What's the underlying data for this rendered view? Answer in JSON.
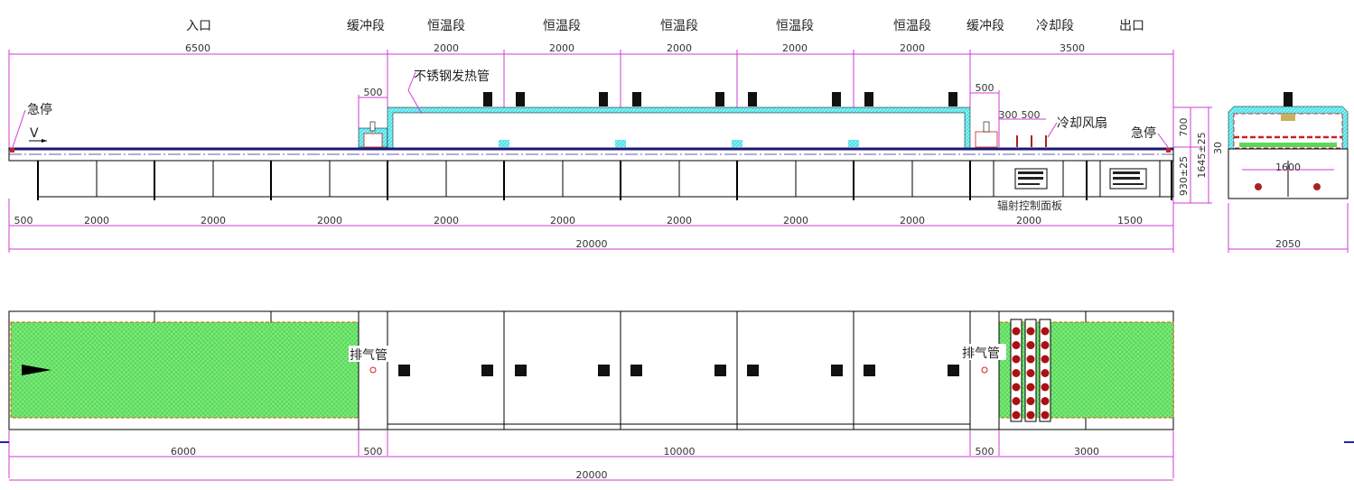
{
  "sections": [
    "入口",
    "缓冲段",
    "恒温段",
    "恒温段",
    "恒温段",
    "恒温段",
    "恒温段",
    "缓冲段",
    "冷却段",
    "出口"
  ],
  "top_dims": [
    "6500",
    "2000",
    "2000",
    "2000",
    "2000",
    "2000",
    "3500"
  ],
  "annotations": {
    "heater_tube": "不锈钢发热管",
    "emergency_stop_left": "急停",
    "emergency_stop_right": "急停",
    "speed": "V",
    "cooling_fan": "冷却风扇",
    "control_panel": "辐射控制面板",
    "exhaust_left": "排气管",
    "exhaust_right": "排气管"
  },
  "small_dims": {
    "buffer_in": "500",
    "buffer_out": "500",
    "fan_gap_a": "300",
    "fan_gap_b": "500"
  },
  "bottom_dims": [
    "500",
    "2000",
    "2000",
    "2000",
    "2000",
    "2000",
    "2000",
    "2000",
    "2000",
    "2000",
    "1500"
  ],
  "total_length": "20000",
  "height_dims": {
    "chamber": "700",
    "conveyor": "930±25",
    "total": "1645±25"
  },
  "end_view": {
    "belt_height": "30",
    "belt_width": "1600",
    "width": "2050"
  },
  "plan_dims": [
    "6000",
    "500",
    "10000",
    "500",
    "3000"
  ],
  "plan_total": "20000",
  "colors": {
    "dimension": "#d23cd2",
    "insulation": "#4fd8e0",
    "belt": "#55dd55",
    "conveyor": "#1a1a70",
    "heater": "#cc2222"
  }
}
